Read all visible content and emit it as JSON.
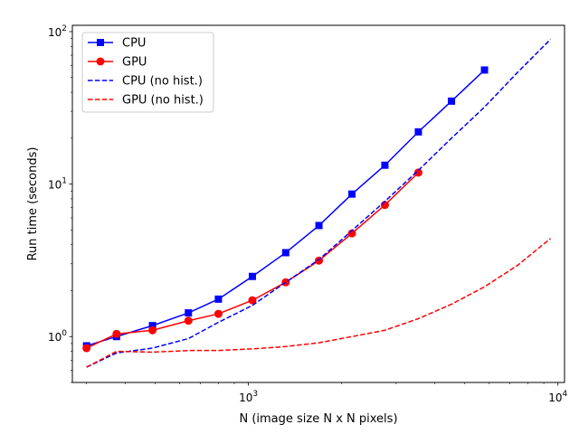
{
  "chart_data": {
    "type": "line",
    "xscale": "log",
    "yscale": "log",
    "xlabel": "N (image size N x N pixels)",
    "ylabel": "Run time (seconds)",
    "xlim": [
      270,
      10500
    ],
    "ylim": [
      0.5,
      110
    ],
    "xticks": [
      {
        "value": 1000,
        "base": "10",
        "exp": "3"
      },
      {
        "value": 10000,
        "base": "10",
        "exp": "4"
      }
    ],
    "yticks": [
      {
        "value": 1,
        "base": "10",
        "exp": "0"
      },
      {
        "value": 10,
        "base": "10",
        "exp": "1"
      },
      {
        "value": 100,
        "base": "10",
        "exp": "2"
      }
    ],
    "legend_position": "upper-left",
    "series": [
      {
        "name": "CPU",
        "color": "#0000ff",
        "linestyle": "solid",
        "marker": "square",
        "x": [
          300,
          375,
          490,
          640,
          800,
          1030,
          1320,
          1690,
          2160,
          2760,
          3540,
          4530,
          5790
        ],
        "y": [
          0.87,
          1.0,
          1.18,
          1.43,
          1.76,
          2.48,
          3.55,
          5.35,
          8.6,
          13.3,
          22.0,
          35.0,
          56.0
        ]
      },
      {
        "name": "GPU",
        "color": "#ff0000",
        "linestyle": "solid",
        "marker": "circle",
        "x": [
          300,
          375,
          490,
          640,
          800,
          1030,
          1320,
          1690,
          2160,
          2760,
          3540
        ],
        "y": [
          0.84,
          1.04,
          1.1,
          1.27,
          1.41,
          1.73,
          2.27,
          3.15,
          4.75,
          7.3,
          11.9
        ]
      },
      {
        "name": "CPU (no hist.)",
        "color": "#0000ff",
        "linestyle": "dashed",
        "marker": "none",
        "x": [
          300,
          375,
          490,
          640,
          800,
          1030,
          1320,
          1690,
          2160,
          2760,
          3540,
          4530,
          5790,
          7400,
          9460
        ],
        "y": [
          0.63,
          0.78,
          0.84,
          0.97,
          1.24,
          1.6,
          2.27,
          3.2,
          4.95,
          7.7,
          12.3,
          20.0,
          32.0,
          54.0,
          89.0
        ]
      },
      {
        "name": "GPU (no hist.)",
        "color": "#ff0000",
        "linestyle": "dashed",
        "marker": "none",
        "x": [
          300,
          375,
          490,
          640,
          800,
          1030,
          1320,
          1690,
          2160,
          2760,
          3540,
          4530,
          5790,
          7400,
          9460
        ],
        "y": [
          0.63,
          0.8,
          0.79,
          0.81,
          0.81,
          0.83,
          0.86,
          0.91,
          1.0,
          1.1,
          1.31,
          1.63,
          2.12,
          2.93,
          4.4
        ]
      }
    ]
  }
}
